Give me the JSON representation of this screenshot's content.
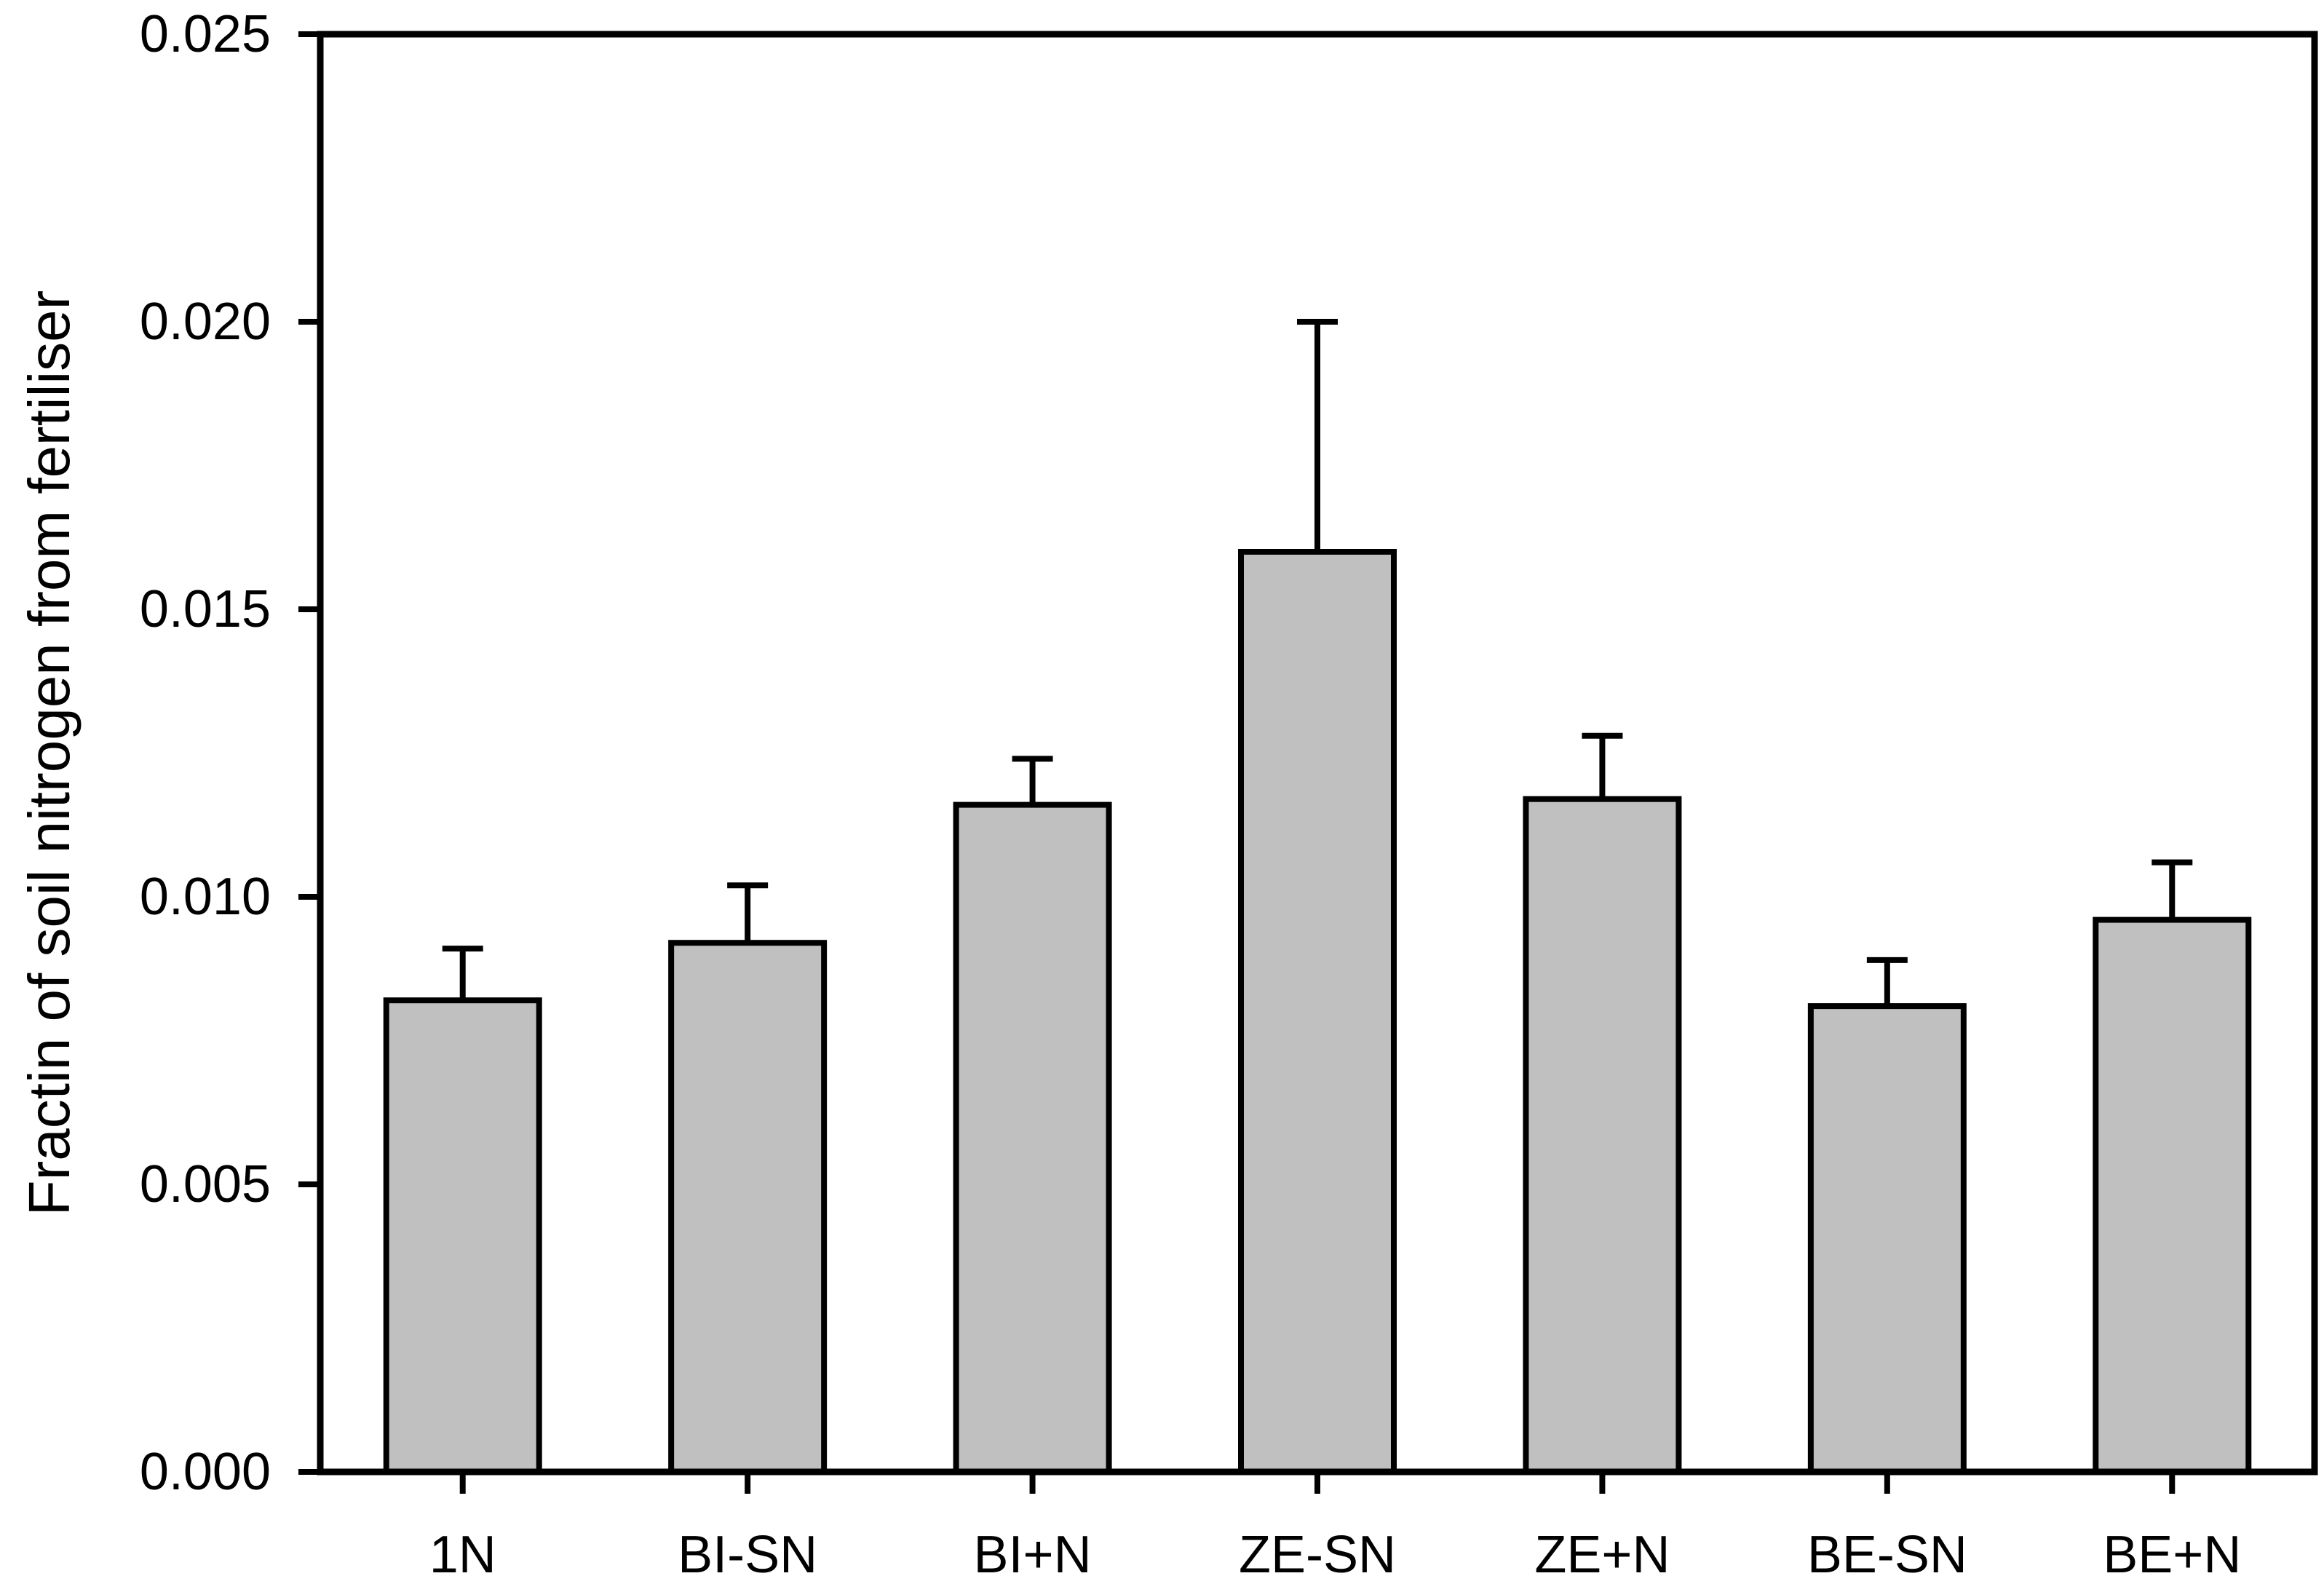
{
  "chart_data": {
    "type": "bar",
    "title": "",
    "xlabel": "",
    "ylabel": "Fractin of soil nitrogen from fertiliser",
    "categories": [
      "1N",
      "BI-SN",
      "BI+N",
      "ZE-SN",
      "ZE+N",
      "BE-SN",
      "BE+N"
    ],
    "values": [
      0.0082,
      0.0092,
      0.0116,
      0.016,
      0.0117,
      0.0081,
      0.0096
    ],
    "errors_up": [
      0.0009,
      0.001,
      0.0008,
      0.004,
      0.0011,
      0.0008,
      0.001
    ],
    "error_tops": [
      0.0091,
      0.0102,
      0.0124,
      0.02,
      0.0128,
      0.0089,
      0.0106
    ],
    "ylim": [
      0.0,
      0.025
    ],
    "ytick_step": 0.005,
    "ytick_labels": [
      "0.000",
      "0.005",
      "0.010",
      "0.015",
      "0.020",
      "0.025"
    ],
    "grid": false,
    "legend_position": "none",
    "colors": {
      "bar_fill": "#c0c0c0",
      "bar_border": "#000000",
      "axis": "#000000",
      "error_bar": "#000000",
      "background": "#ffffff",
      "text": "#000000"
    }
  }
}
